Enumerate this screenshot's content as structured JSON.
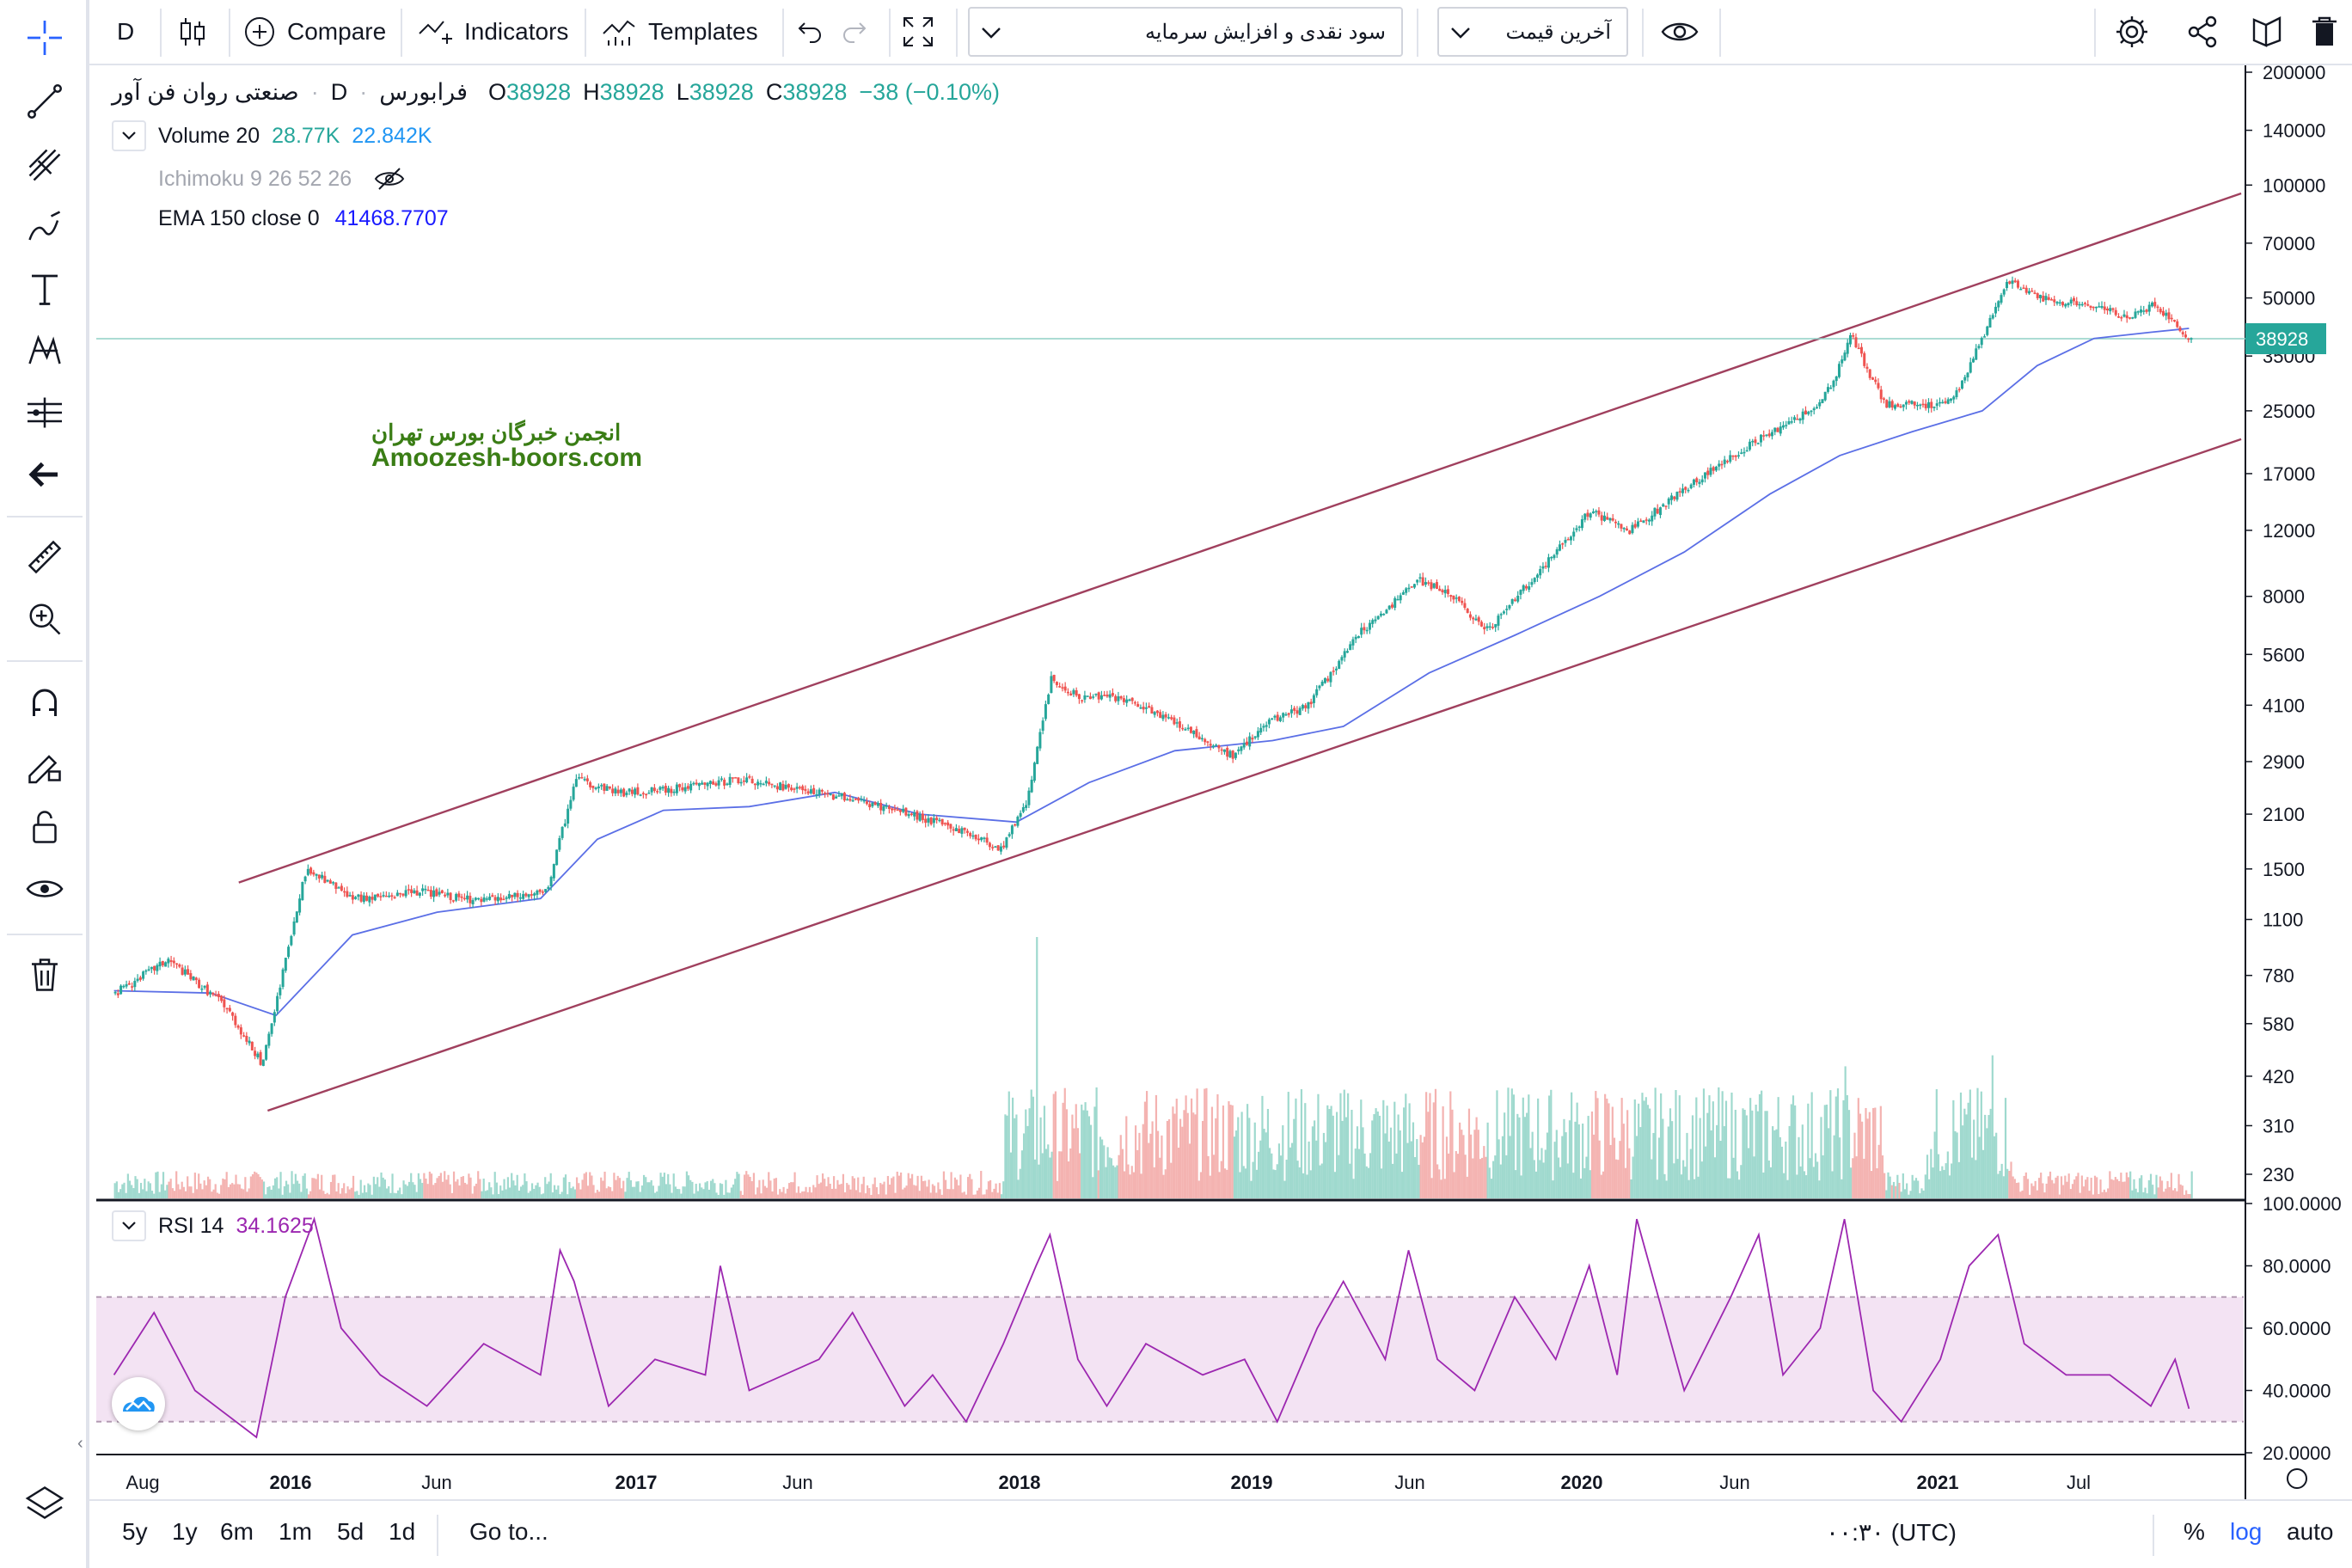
{
  "toolbar": {
    "interval": "D",
    "compare_label": "Compare",
    "indicators_label": "Indicators",
    "templates_label": "Templates",
    "dropdown_symbol_group": "سود نقدی و افزایش سرمایه",
    "dropdown_price_type": "آخرین قیمت"
  },
  "legend": {
    "symbol": "صنعتی روان فن آور",
    "interval": "D",
    "exchange": "فرابورس",
    "open_label": "O",
    "open": "38928",
    "high_label": "H",
    "high": "38928",
    "low_label": "L",
    "low": "38928",
    "close_label": "C",
    "close": "38928",
    "change": "−38 (−0.10%)",
    "volume_label": "Volume 20",
    "volume_value": "28.77K",
    "volume_ma": "22.842K",
    "ichimoku_label": "Ichimoku 9 26 52 26",
    "ema_label": "EMA 150 close 0",
    "ema_value": "41468.7707",
    "rsi_label": "RSI 14",
    "rsi_value": "34.1625"
  },
  "watermark": {
    "line1": "انجمن خبرگان بورس تهران",
    "line2": "Amoozesh-boors.com"
  },
  "price_badge": "38928",
  "colors": {
    "up": "#26a69a",
    "down": "#ef5350",
    "ema": "#5b6fe6",
    "rsi": "#9c27b0",
    "channel": "#a0405e",
    "rsi_band": "#f3e3f3",
    "accent": "#2962ff",
    "watermark": "#3a7d15"
  },
  "bottombar": {
    "ranges": [
      "5y",
      "1y",
      "6m",
      "1m",
      "5d",
      "1d"
    ],
    "goto_label": "Go to...",
    "time": "۰۰:۳۰ (UTC)",
    "percent": "%",
    "log": "log",
    "auto": "auto"
  },
  "chart_data": {
    "type": "line",
    "scale": "log",
    "price_axis_ticks": [
      200000,
      140000,
      100000,
      70000,
      50000,
      35000,
      25000,
      17000,
      12000,
      8000,
      5600,
      4100,
      2900,
      2100,
      1500,
      1100,
      780,
      580,
      420,
      310,
      230
    ],
    "time_axis_labels": [
      "Aug",
      "2016",
      "Jun",
      "2017",
      "Jun",
      "2018",
      "2019",
      "Jun",
      "2020",
      "Jun",
      "2021",
      "Jul"
    ],
    "series": [
      {
        "x": [
          "2015-07-20",
          "2015-09-15",
          "2015-11-15",
          "2015-12-25",
          "2016-02-10",
          "2016-04-01",
          "2016-06-15",
          "2016-08-15",
          "2016-10-25",
          "2016-11-25",
          "2017-01-15",
          "2017-03-10",
          "2017-05-20",
          "2017-07-20",
          "2017-09-20",
          "2017-11-20",
          "2018-01-15",
          "2018-02-25",
          "2018-03-25",
          "2018-04-20",
          "2018-05-20",
          "2018-07-01",
          "2018-09-01",
          "2018-11-01",
          "2018-12-10",
          "2019-01-20",
          "2019-03-20",
          "2019-05-20",
          "2019-06-20",
          "2019-08-01",
          "2019-09-20",
          "2019-11-20",
          "2020-01-01",
          "2020-03-01",
          "2020-04-20",
          "2020-06-01",
          "2020-07-15",
          "2020-08-10",
          "2020-08-25",
          "2020-10-01",
          "2020-11-20",
          "2020-12-15",
          "2021-01-15",
          "2021-02-10",
          "2021-03-20",
          "2021-05-01",
          "2021-06-20",
          "2021-07-20",
          "2021-08-10",
          "2021-08-25"
        ],
        "values": [
          700,
          860,
          650,
          450,
          1500,
          1250,
          1300,
          1230,
          1300,
          2600,
          2400,
          2450,
          2600,
          2450,
          2300,
          2100,
          1900,
          1700,
          2300,
          4800,
          4300,
          4300,
          3700,
          3000,
          3700,
          4100,
          6500,
          8800,
          8200,
          6500,
          9000,
          13500,
          12000,
          15500,
          19000,
          22000,
          25000,
          31000,
          40000,
          26000,
          26000,
          27000,
          40000,
          55000,
          50000,
          48000,
          45000,
          48000,
          42000,
          38928
        ]
      },
      {
        "name": "EMA 150 close 0",
        "x": [
          "2015-07-20",
          "2015-11-01",
          "2016-01-10",
          "2016-04-01",
          "2016-07-01",
          "2016-10-20",
          "2016-12-20",
          "2017-03-01",
          "2017-06-01",
          "2017-09-01",
          "2017-12-01",
          "2018-03-15",
          "2018-06-01",
          "2018-09-01",
          "2018-12-15",
          "2019-03-01",
          "2019-06-01",
          "2019-09-01",
          "2019-12-01",
          "2020-03-01",
          "2020-06-01",
          "2020-08-15",
          "2020-11-01",
          "2021-01-15",
          "2021-03-15",
          "2021-05-15",
          "2021-07-15",
          "2021-08-25"
        ],
        "values": [
          710,
          700,
          610,
          1000,
          1150,
          1250,
          1800,
          2150,
          2200,
          2400,
          2100,
          2000,
          2550,
          3100,
          3300,
          3600,
          5000,
          6300,
          8000,
          10500,
          15000,
          19000,
          22000,
          25000,
          33000,
          39000,
          40500,
          41468.7707
        ]
      }
    ],
    "channel_lines": [
      {
        "from": [
          "2015-12-01",
          1380
        ],
        "to": [
          "2021-10-20",
          95000
        ]
      },
      {
        "from": [
          "2016-01-01",
          340
        ],
        "to": [
          "2021-10-20",
          21000
        ]
      }
    ],
    "last_price": 38928,
    "volume": {
      "label": "Volume 20",
      "last": "28.77K",
      "ma": "22.842K"
    },
    "rsi": {
      "period": 14,
      "last": 34.1625,
      "axis_ticks": [
        100,
        80,
        60,
        40,
        20
      ],
      "band": [
        30,
        70
      ],
      "x": [
        "2015-07-20",
        "2015-09-01",
        "2015-10-15",
        "2015-12-20",
        "2016-01-20",
        "2016-02-20",
        "2016-03-20",
        "2016-05-01",
        "2016-06-20",
        "2016-08-20",
        "2016-10-20",
        "2016-11-10",
        "2016-11-25",
        "2017-01-01",
        "2017-02-20",
        "2017-04-15",
        "2017-05-01",
        "2017-06-01",
        "2017-08-15",
        "2017-09-20",
        "2017-11-15",
        "2017-12-15",
        "2018-01-20",
        "2018-03-01",
        "2018-04-05",
        "2018-04-20",
        "2018-05-20",
        "2018-06-20",
        "2018-08-01",
        "2018-10-01",
        "2018-11-15",
        "2018-12-20",
        "2019-02-01",
        "2019-03-01",
        "2019-04-15",
        "2019-05-10",
        "2019-06-10",
        "2019-07-20",
        "2019-09-01",
        "2019-10-15",
        "2019-11-20",
        "2019-12-20",
        "2020-01-10",
        "2020-03-01",
        "2020-04-20",
        "2020-05-20",
        "2020-06-15",
        "2020-07-25",
        "2020-08-20",
        "2020-09-20",
        "2020-10-20",
        "2020-12-01",
        "2021-01-01",
        "2021-02-01",
        "2021-03-01",
        "2021-04-15",
        "2021-06-01",
        "2021-07-15",
        "2021-08-10",
        "2021-08-25"
      ],
      "values": [
        45,
        65,
        40,
        25,
        70,
        95,
        60,
        45,
        35,
        55,
        45,
        85,
        75,
        35,
        50,
        45,
        80,
        40,
        50,
        65,
        35,
        45,
        30,
        55,
        80,
        90,
        50,
        35,
        55,
        45,
        50,
        30,
        60,
        75,
        50,
        85,
        50,
        40,
        70,
        50,
        80,
        45,
        95,
        40,
        70,
        90,
        45,
        60,
        95,
        40,
        30,
        50,
        80,
        90,
        55,
        45,
        45,
        35,
        50,
        34.16
      ]
    }
  }
}
